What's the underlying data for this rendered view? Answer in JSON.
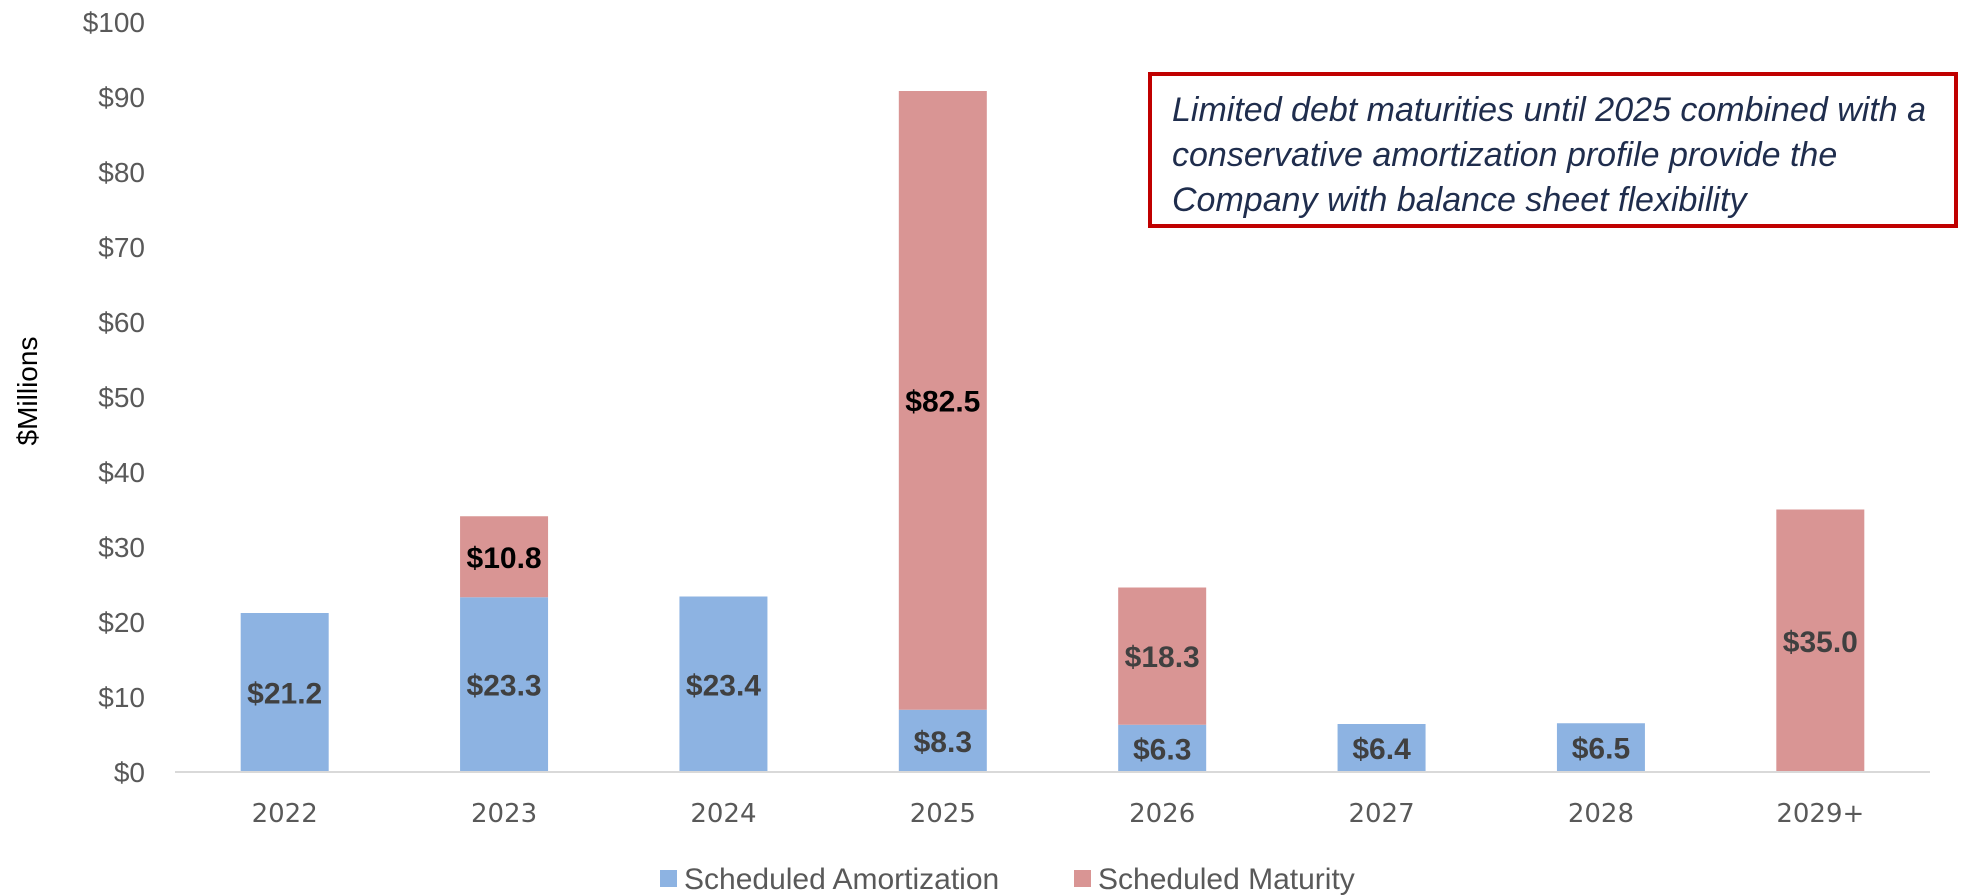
{
  "chart_data": {
    "type": "bar",
    "stacked": true,
    "categories": [
      "2022",
      "2023",
      "2024",
      "2025",
      "2026",
      "2027",
      "2028",
      "2029+"
    ],
    "series": [
      {
        "name": "Scheduled Amortization",
        "color": "#8db3e2",
        "values": [
          21.2,
          23.3,
          23.4,
          8.3,
          6.3,
          6.4,
          6.5,
          0
        ]
      },
      {
        "name": "Scheduled Maturity",
        "color": "#d99594",
        "values": [
          0,
          10.8,
          0,
          82.5,
          18.3,
          0,
          0,
          35.0
        ]
      }
    ],
    "data_labels": [
      [
        "$21.2",
        "$23.3",
        "$23.4",
        "$8.3",
        "$6.3",
        "$6.4",
        "$6.5",
        ""
      ],
      [
        "",
        "$10.8",
        "",
        "$82.5",
        "$18.3",
        "",
        "",
        "$35.0"
      ]
    ],
    "ylabel": "$Millions",
    "ylim": [
      0,
      100
    ],
    "yticks": [
      0,
      10,
      20,
      30,
      40,
      50,
      60,
      70,
      80,
      90,
      100
    ],
    "ytick_labels": [
      "$0",
      "$10",
      "$20",
      "$30",
      "$40",
      "$50",
      "$60",
      "$70",
      "$80",
      "$90",
      "$100"
    ],
    "grid": false,
    "legend_position": "bottom"
  },
  "callout": {
    "text": "Limited debt maturities until 2025 combined with a conservative amortization profile provide the Company with balance sheet flexibility",
    "border_color": "#c00000"
  }
}
